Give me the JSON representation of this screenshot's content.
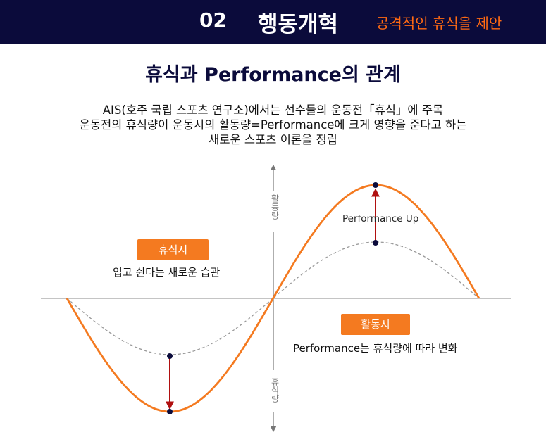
{
  "header": {
    "section_number": "02",
    "title": "행동개혁",
    "subtitle": "공격적인 휴식을 제안"
  },
  "main_title": "휴식과 Performance의 관계",
  "description": [
    "AIS(호주 국립 스포츠 연구소)에서는 선수들의 운동전「휴식」에 주목",
    "운동전의 휴식량이 운동시의 활동량=Performance에 크게 영향을 준다고 하는",
    "새로운 스포츠 이론을 정립"
  ],
  "diagram": {
    "y_axis_top_label": "활동량",
    "y_axis_bottom_label": "휴식량",
    "rest_badge": "휴식시",
    "rest_caption": "입고 쉰다는 새로운 습관",
    "activity_badge": "활동시",
    "activity_caption": "Performance는 휴식량에 따라 변화",
    "arrow_label": "Performance Up"
  },
  "colors": {
    "header_bg": "#0b0b3b",
    "accent_orange": "#ff6a13",
    "badge_orange": "#f47a20",
    "arrow_red": "#b01010",
    "dashed_curve": "#999999"
  }
}
